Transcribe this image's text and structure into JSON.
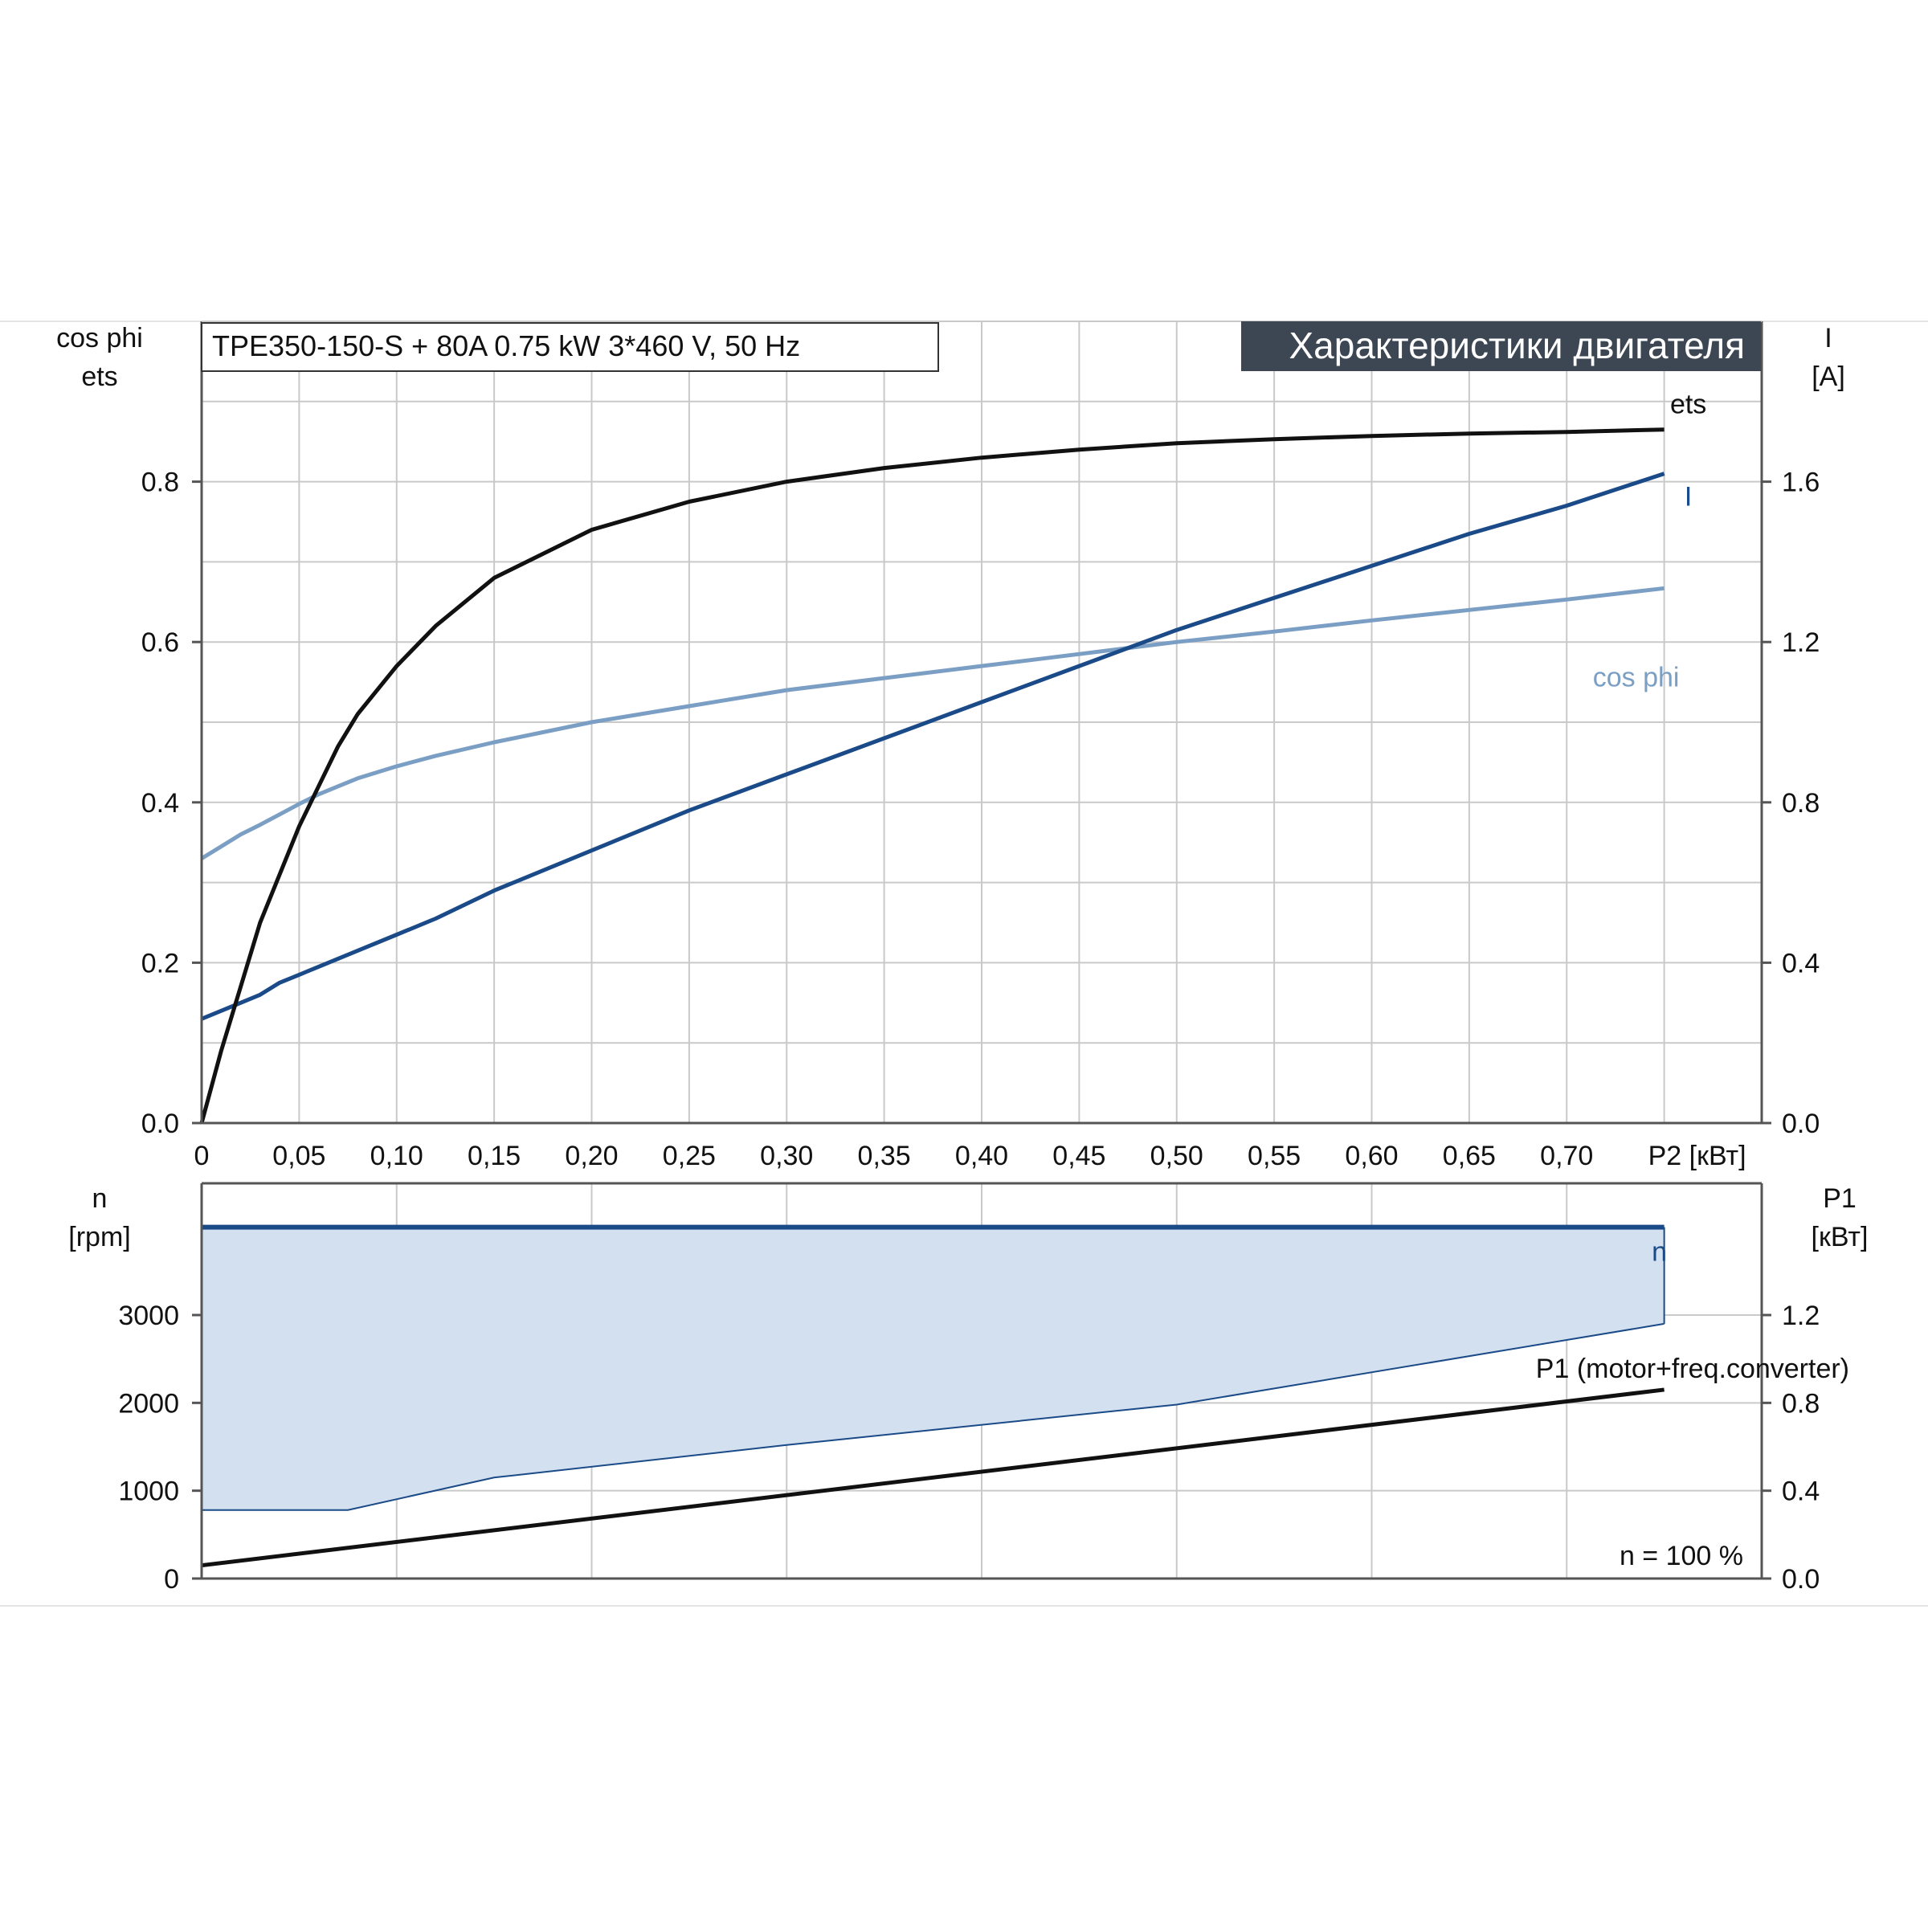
{
  "subtitle": "TPE350-150-S + 80A   0.75 kW   3*460 V, 50 Hz",
  "title": "Характеристики двигателя",
  "colors": {
    "grid": "#c9c9c9",
    "frame": "#555555",
    "banner_bg": "#3d4754",
    "ets": "#111111",
    "current": "#1a4a87",
    "cos_phi": "#7b9fc4",
    "speed": "#1a4a87",
    "fill": "#d3e0ef",
    "p1": "#111111"
  },
  "chart_data": [
    {
      "type": "line",
      "name": "motor-characteristics",
      "x": [
        0,
        0.01,
        0.02,
        0.03,
        0.04,
        0.05,
        0.06,
        0.07,
        0.08,
        0.1,
        0.12,
        0.15,
        0.2,
        0.25,
        0.3,
        0.35,
        0.4,
        0.45,
        0.5,
        0.55,
        0.6,
        0.65,
        0.7,
        0.75
      ],
      "xlim": [
        0,
        0.8
      ],
      "x_tick_values": [
        0,
        0.05,
        0.1,
        0.15,
        0.2,
        0.25,
        0.3,
        0.35,
        0.4,
        0.45,
        0.5,
        0.55,
        0.6,
        0.65,
        0.7
      ],
      "x_tick_labels": [
        "0",
        "0,05",
        "0,10",
        "0,15",
        "0,20",
        "0,25",
        "0,30",
        "0,35",
        "0,40",
        "0,45",
        "0,50",
        "0,55",
        "0,60",
        "0,65",
        "0,70"
      ],
      "xlabel": "P2 [кВт]",
      "ylabel_left": [
        "cos phi",
        "ets"
      ],
      "ylim_left": [
        0,
        1.0
      ],
      "y_left_ticks": [
        0.0,
        0.2,
        0.4,
        0.6,
        0.8
      ],
      "y_left_tick_labels": [
        "0.0",
        "0.2",
        "0.4",
        "0.6",
        "0.8"
      ],
      "ylabel_right": [
        "I",
        "[A]"
      ],
      "ylim_right": [
        0,
        2.0
      ],
      "y_right_ticks": [
        0.0,
        0.4,
        0.8,
        1.2,
        1.6
      ],
      "y_right_tick_labels": [
        "0.0",
        "0.4",
        "0.8",
        "1.2",
        "1.6"
      ],
      "grid": true,
      "series": [
        {
          "name": "ets",
          "axis": "left",
          "values": [
            0.0,
            0.09,
            0.17,
            0.25,
            0.31,
            0.37,
            0.42,
            0.47,
            0.51,
            0.57,
            0.62,
            0.68,
            0.74,
            0.775,
            0.8,
            0.817,
            0.83,
            0.84,
            0.848,
            0.853,
            0.857,
            0.86,
            0.862,
            0.865
          ]
        },
        {
          "name": "I",
          "axis": "right",
          "values": [
            0.26,
            0.28,
            0.3,
            0.32,
            0.35,
            0.37,
            0.39,
            0.41,
            0.43,
            0.47,
            0.51,
            0.58,
            0.68,
            0.78,
            0.87,
            0.96,
            1.05,
            1.14,
            1.23,
            1.31,
            1.39,
            1.47,
            1.54,
            1.62
          ]
        },
        {
          "name": "cos phi",
          "axis": "left",
          "values": [
            0.33,
            0.345,
            0.36,
            0.372,
            0.385,
            0.398,
            0.41,
            0.42,
            0.43,
            0.445,
            0.458,
            0.475,
            0.5,
            0.52,
            0.54,
            0.555,
            0.57,
            0.585,
            0.6,
            0.613,
            0.627,
            0.64,
            0.653,
            0.667
          ]
        }
      ]
    },
    {
      "type": "area",
      "name": "speed-and-input-power",
      "x": [
        0,
        0.075,
        0.15,
        0.3,
        0.5,
        0.75
      ],
      "xlim": [
        0,
        0.8
      ],
      "ylabel_left": [
        "n",
        "[rpm]"
      ],
      "ylim_left": [
        0,
        4500
      ],
      "y_left_ticks": [
        0,
        1000,
        2000,
        3000
      ],
      "y_left_tick_labels": [
        "0",
        "1000",
        "2000",
        "3000"
      ],
      "ylabel_right": [
        "P1",
        "[кВт]"
      ],
      "ylim_right": [
        0,
        1.8
      ],
      "y_right_ticks": [
        0.0,
        0.4,
        0.8,
        1.2
      ],
      "y_right_tick_labels": [
        "0.0",
        "0.4",
        "0.8",
        "1.2"
      ],
      "grid": true,
      "series": [
        {
          "name": "n",
          "axis": "left",
          "x": [
            0,
            0.75
          ],
          "values": [
            4000,
            4000
          ]
        },
        {
          "name": "n-lower-bound",
          "axis": "left",
          "x": [
            0,
            0.075,
            0.15,
            0.3,
            0.5,
            0.75
          ],
          "values": [
            780,
            780,
            1150,
            1520,
            1980,
            2900
          ]
        },
        {
          "name": "P1 (motor+freq.converter)",
          "axis": "right",
          "x": [
            0,
            0.75
          ],
          "values": [
            0.06,
            0.86
          ]
        }
      ],
      "annotation": "n = 100 %"
    }
  ]
}
